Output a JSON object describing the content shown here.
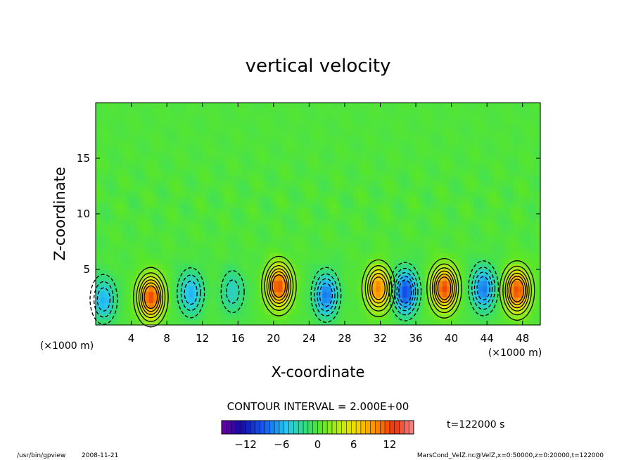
{
  "chart_data": {
    "type": "heatmap",
    "title": "vertical velocity",
    "xlabel": "X-coordinate",
    "ylabel": "Z-coordinate",
    "x_unit": "(×1000 m)",
    "y_unit": "(×1000 m)",
    "xlim": [
      0,
      50
    ],
    "ylim": [
      0,
      20
    ],
    "x_ticks": [
      4,
      8,
      12,
      16,
      20,
      24,
      28,
      32,
      36,
      40,
      44,
      48
    ],
    "y_ticks": [
      5,
      10,
      15
    ],
    "contour_interval_text": "CONTOUR INTERVAL = 2.000E+00",
    "time_label": "t=122000 s",
    "colorbar": {
      "range": [
        -16,
        16
      ],
      "ticks": [
        -12,
        -6,
        0,
        6,
        12
      ]
    },
    "updraft_cells": [
      {
        "x": 6.2,
        "z": 2.5,
        "w": 12
      },
      {
        "x": 20.6,
        "z": 3.5,
        "w": 12
      },
      {
        "x": 31.8,
        "z": 3.3,
        "w": 10
      },
      {
        "x": 39.2,
        "z": 3.3,
        "w": 12
      },
      {
        "x": 47.4,
        "z": 3.1,
        "w": 12
      }
    ],
    "downdraft_cells": [
      {
        "x": 0.9,
        "z": 2.3,
        "w": -6
      },
      {
        "x": 10.7,
        "z": 2.9,
        "w": -6
      },
      {
        "x": 15.4,
        "z": 3.0,
        "w": -4
      },
      {
        "x": 25.9,
        "z": 2.7,
        "w": -8
      },
      {
        "x": 34.8,
        "z": 3.0,
        "w": -10
      },
      {
        "x": 43.6,
        "z": 3.3,
        "w": -8
      }
    ]
  },
  "footer": {
    "program": "/usr/bin/gpview",
    "date": "2008-11-21",
    "source": "MarsCond_VelZ.nc@VelZ,x=0:50000,z=0:20000,t=122000"
  }
}
